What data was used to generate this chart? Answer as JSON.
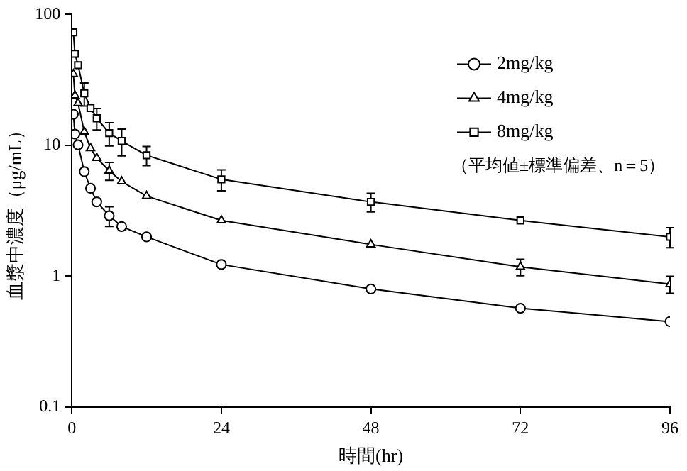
{
  "chart_data": {
    "type": "line",
    "xlabel": "時間(hr)",
    "ylabel": "血漿中濃度（μg/mL）",
    "log": "y",
    "xlim": [
      0,
      96
    ],
    "xticks": [
      0,
      24,
      48,
      72,
      96
    ],
    "ylim": [
      0.1,
      100
    ],
    "yticks": [
      0.1,
      1,
      10,
      100
    ],
    "grid": false,
    "legend": "top right",
    "line_style": "solid",
    "x": [
      0.25,
      0.5,
      1,
      2,
      3,
      4,
      6,
      8,
      12,
      24,
      48,
      72,
      96
    ],
    "series": [
      {
        "name": "2mg/kg",
        "color": "#000000",
        "marker": "circle",
        "values": [
          17.3,
          12.2,
          10.1,
          6.3,
          4.7,
          3.7,
          2.9,
          2.4,
          2.0,
          1.23,
          0.8,
          0.57,
          0.45
        ],
        "errors": [
          null,
          null,
          null,
          null,
          null,
          null,
          0.5,
          null,
          null,
          null,
          null,
          null,
          null
        ]
      },
      {
        "name": "4mg/kg",
        "color": "#000000",
        "marker": "triangle",
        "values": [
          35,
          24,
          21,
          12.7,
          9.5,
          8.0,
          6.4,
          5.3,
          4.1,
          2.67,
          1.75,
          1.18,
          0.87
        ],
        "errors": [
          null,
          null,
          null,
          null,
          null,
          null,
          1.0,
          null,
          null,
          null,
          null,
          0.17,
          0.13
        ]
      },
      {
        "name": "8mg/kg",
        "color": "#000000",
        "marker": "square",
        "values": [
          73,
          50,
          41,
          25,
          19.3,
          16.1,
          12.4,
          10.8,
          8.4,
          5.5,
          3.7,
          2.67,
          2.0
        ],
        "errors": [
          null,
          null,
          null,
          5,
          null,
          3,
          2.5,
          2.5,
          1.4,
          1.0,
          0.6,
          null,
          0.35
        ]
      }
    ],
    "annotations": [
      "（平均値±標準偏差、n＝5）"
    ]
  }
}
